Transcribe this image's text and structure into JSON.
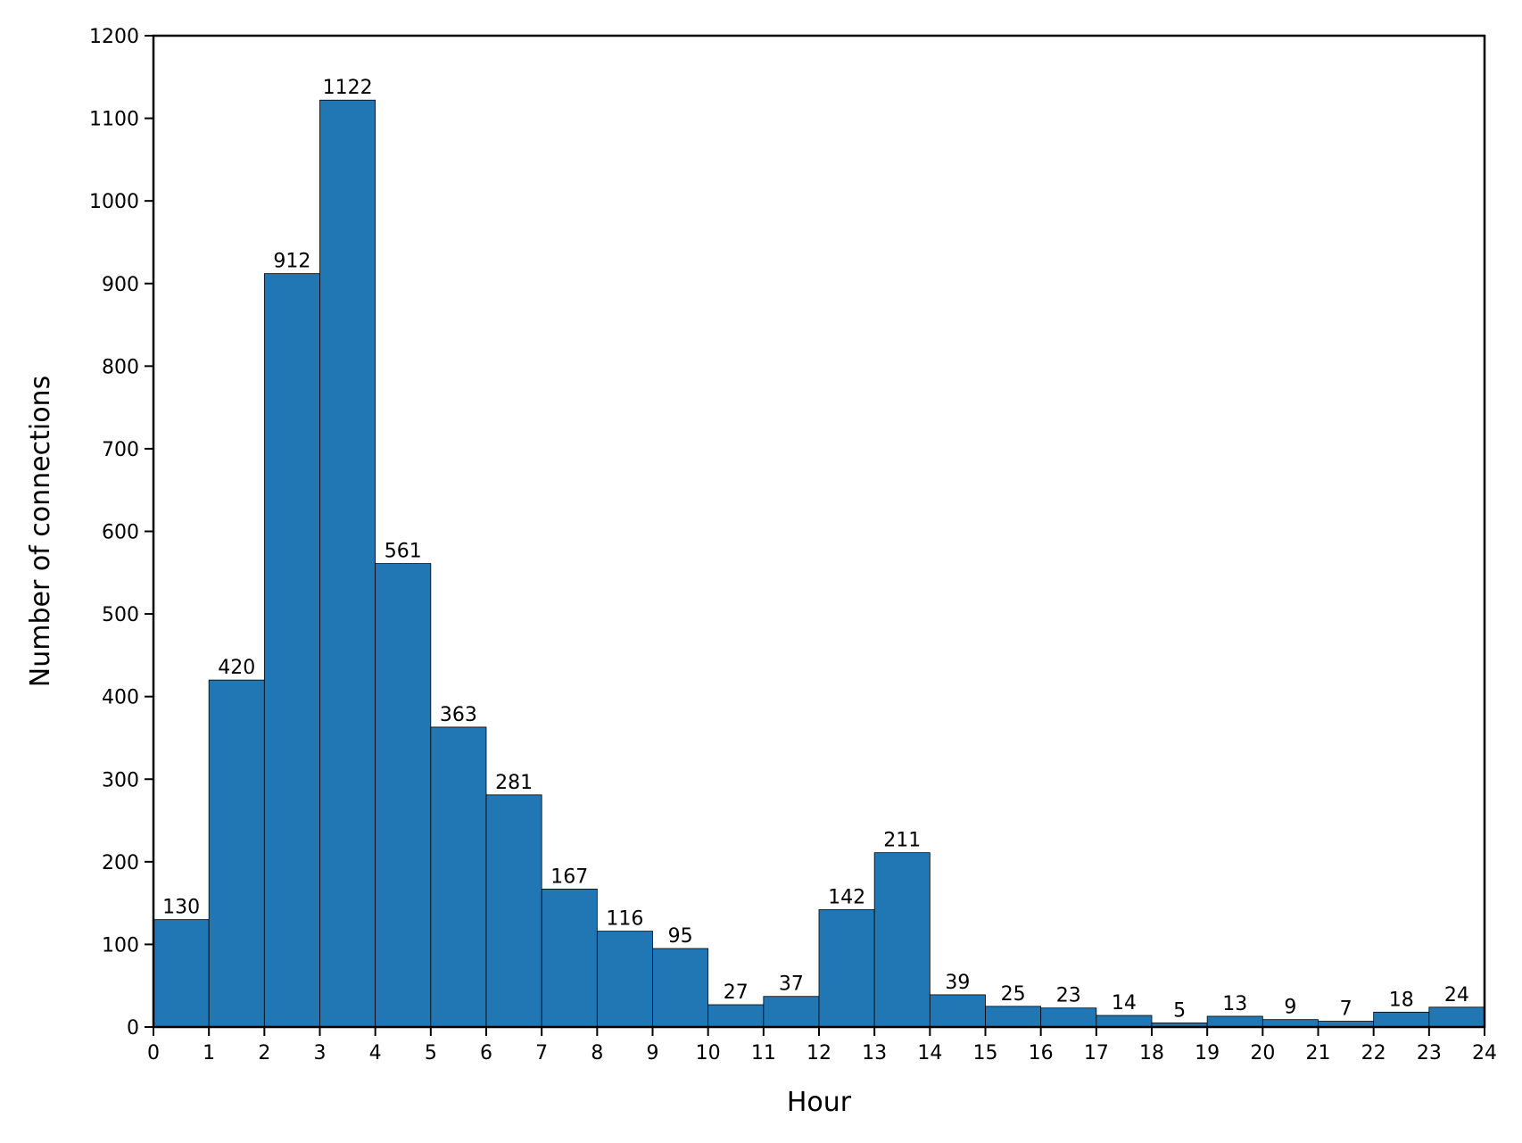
{
  "chart_data": {
    "type": "bar",
    "title": "",
    "xlabel": "Hour",
    "ylabel": "Number of connections",
    "xlim": [
      0,
      24
    ],
    "ylim": [
      0,
      1200
    ],
    "x_ticks": [
      "0",
      "1",
      "2",
      "3",
      "4",
      "5",
      "6",
      "7",
      "8",
      "9",
      "10",
      "11",
      "12",
      "13",
      "14",
      "15",
      "16",
      "17",
      "18",
      "19",
      "20",
      "21",
      "22",
      "23",
      "24"
    ],
    "y_ticks": [
      "0",
      "100",
      "200",
      "300",
      "400",
      "500",
      "600",
      "700",
      "800",
      "900",
      "1000",
      "1100",
      "1200"
    ],
    "bins": [
      [
        0,
        1
      ],
      [
        1,
        2
      ],
      [
        2,
        3
      ],
      [
        3,
        4
      ],
      [
        4,
        5
      ],
      [
        5,
        6
      ],
      [
        6,
        7
      ],
      [
        7,
        8
      ],
      [
        8,
        9
      ],
      [
        9,
        10
      ],
      [
        10,
        11
      ],
      [
        11,
        12
      ],
      [
        12,
        13
      ],
      [
        13,
        14
      ],
      [
        14,
        15
      ],
      [
        15,
        16
      ],
      [
        16,
        17
      ],
      [
        17,
        18
      ],
      [
        18,
        19
      ],
      [
        19,
        20
      ],
      [
        20,
        21
      ],
      [
        21,
        22
      ],
      [
        22,
        23
      ],
      [
        23,
        24
      ]
    ],
    "values": [
      130,
      420,
      912,
      1122,
      561,
      363,
      281,
      167,
      116,
      95,
      27,
      37,
      142,
      211,
      39,
      25,
      23,
      14,
      5,
      13,
      9,
      7,
      18,
      24
    ],
    "data_labels": [
      "130",
      "420",
      "912",
      "1122",
      "561",
      "363",
      "281",
      "167",
      "116",
      "95",
      "27",
      "37",
      "142",
      "211",
      "39",
      "25",
      "23",
      "14",
      "5",
      "13",
      "9",
      "7",
      "18",
      "24"
    ],
    "bar_color": "#2077b4",
    "edge_color": "#000000",
    "grid": false,
    "legend": "none"
  }
}
